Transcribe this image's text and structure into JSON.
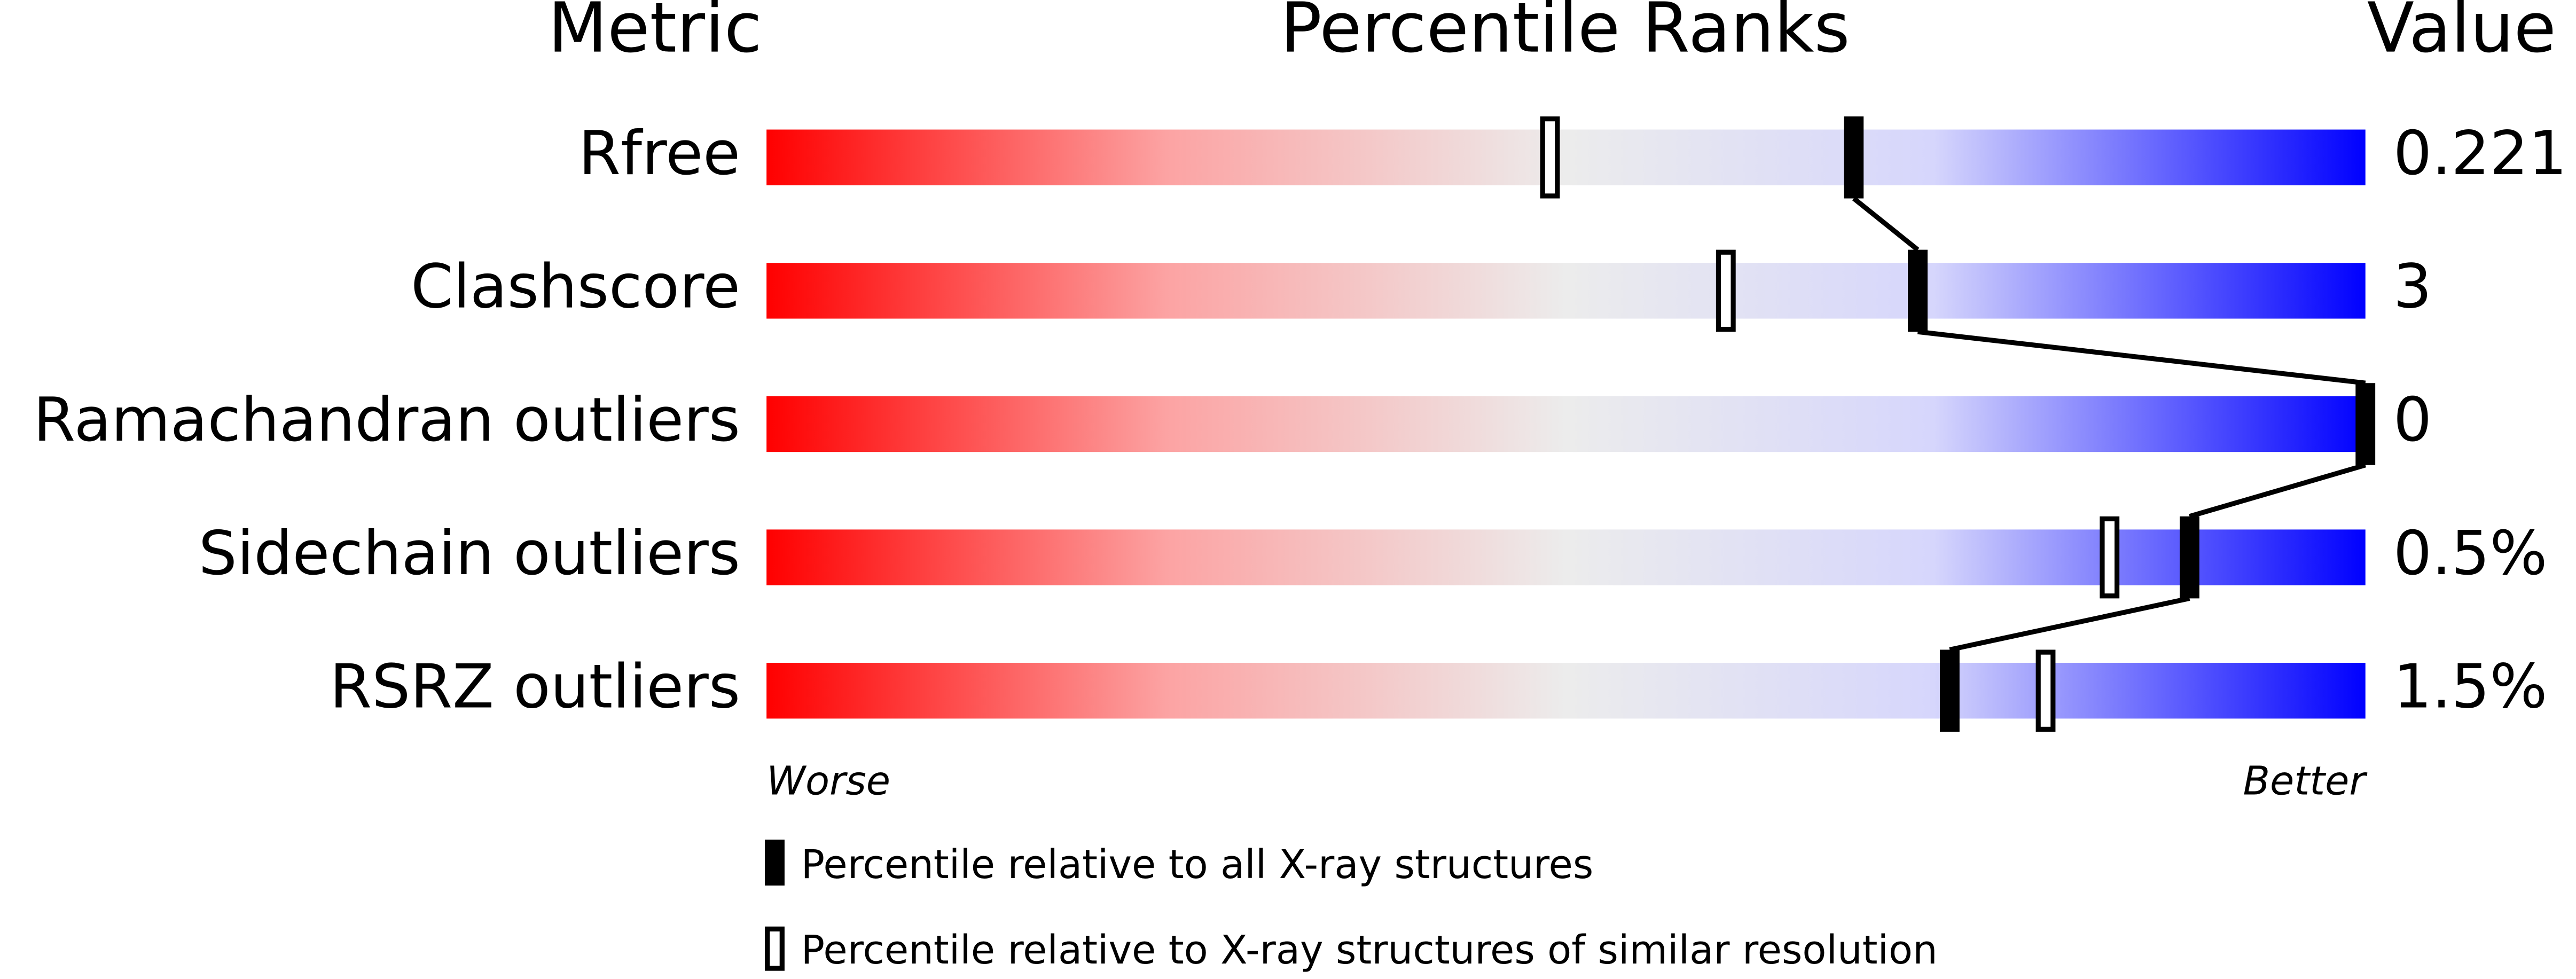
{
  "chart_data": {
    "type": "percentile",
    "headers": [
      "Metric",
      "Percentile Ranks",
      "Value"
    ],
    "categories": [
      "Rfree",
      "Clashscore",
      "Ramachandran outliers",
      "Sidechain outliers",
      "RSRZ outliers"
    ],
    "value_labels": [
      "0.221",
      "3",
      "0",
      "0.5%",
      "1.5%"
    ],
    "xlim": [
      0,
      100
    ],
    "x_end_labels": [
      "Worse",
      "Better"
    ],
    "series": [
      {
        "name": "Percentile relative to all X-ray structures",
        "color": "#000000",
        "values": [
          68,
          72,
          100,
          89,
          74
        ]
      },
      {
        "name": "Percentile relative to X-ray structures of similar resolution",
        "color": "#000000",
        "values": [
          49,
          60,
          null,
          84,
          80
        ]
      }
    ]
  }
}
